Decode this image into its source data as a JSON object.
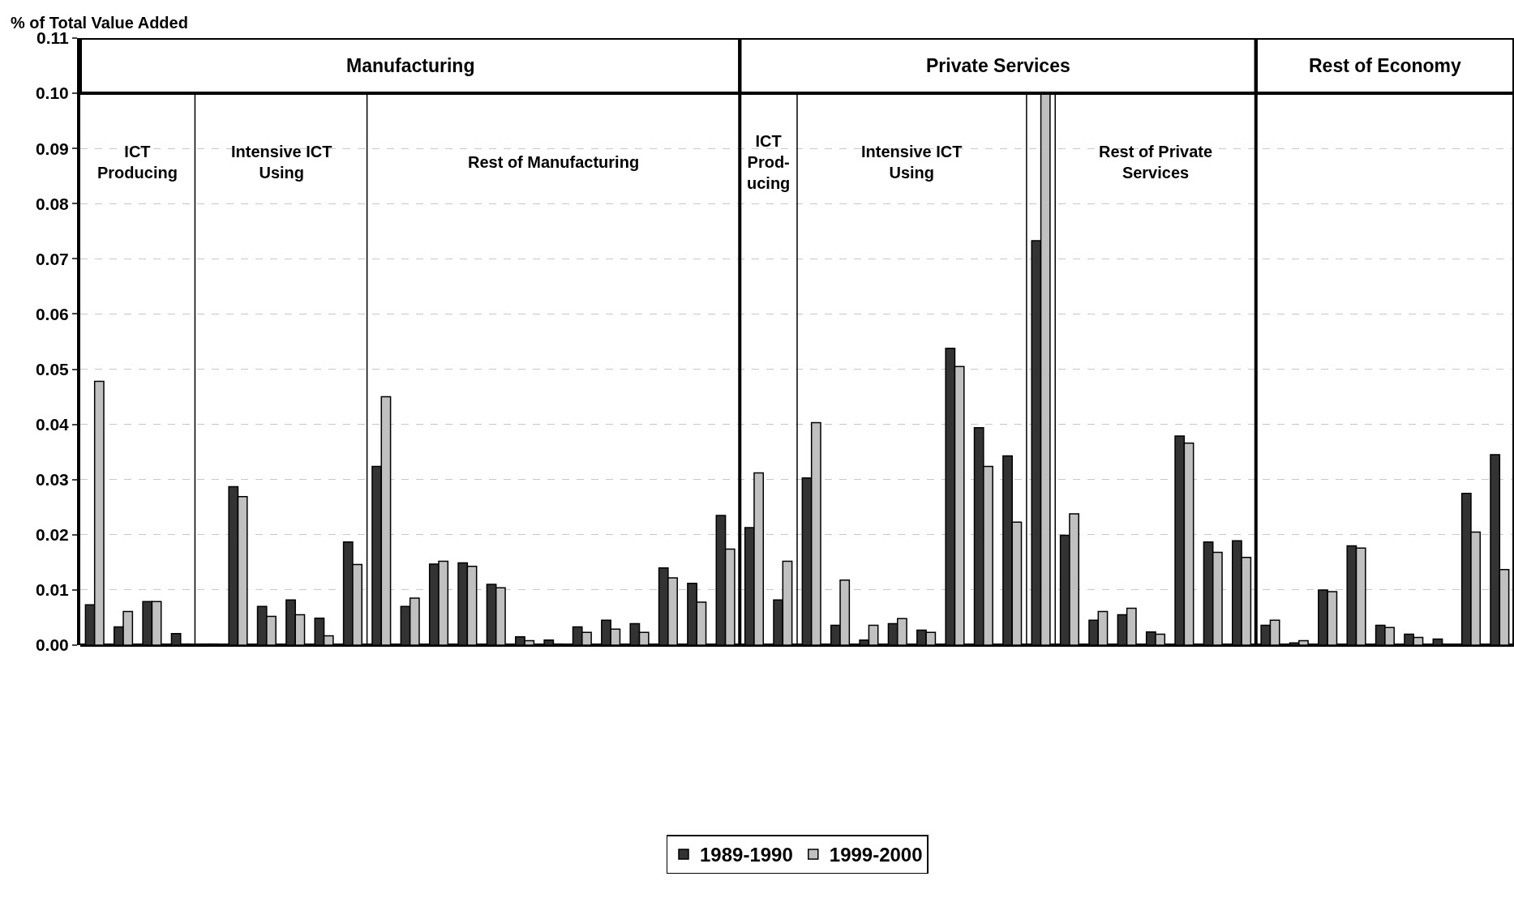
{
  "chart_data": {
    "type": "bar",
    "ylabel": "% of Total Value Added",
    "categories": [
      null,
      null,
      null,
      null,
      null,
      null,
      null,
      null,
      null,
      null,
      null,
      null,
      null,
      null,
      null,
      null,
      null,
      null,
      null,
      null,
      null,
      null,
      null,
      null,
      null,
      null,
      null,
      null,
      null,
      null,
      null,
      null,
      null,
      null,
      null,
      null,
      null,
      null,
      null,
      null,
      null,
      null,
      null,
      null,
      null,
      null,
      null,
      null,
      null,
      null
    ],
    "series": [
      {
        "name": "1989-1990",
        "color": "#333333",
        "values": [
          0.0073,
          0.0033,
          0.0079,
          0.0021,
          0.0002,
          0.0287,
          0.007,
          0.0082,
          0.0049,
          0.0187,
          0.0324,
          0.007,
          0.0147,
          0.0149,
          0.011,
          0.0015,
          0.0009,
          0.0033,
          0.0045,
          0.0039,
          0.014,
          0.0112,
          0.0235,
          0.0213,
          0.0082,
          0.0303,
          0.0036,
          0.0009,
          0.0039,
          0.0027,
          0.0538,
          0.0394,
          0.0343,
          0.0733,
          0.0199,
          0.0045,
          0.0055,
          0.0024,
          0.0379,
          0.0187,
          0.0189,
          0.0036,
          0.0004,
          0.01,
          0.018,
          0.0036,
          0.002,
          0.0011,
          0.0275,
          0.0345
        ]
      },
      {
        "name": "1999-2000",
        "color": "#c0c0c0",
        "values": [
          0.0478,
          0.0061,
          0.0079,
          0.0002,
          0.0002,
          0.0269,
          0.0052,
          0.0055,
          0.0017,
          0.0146,
          0.045,
          0.0085,
          0.0152,
          0.0143,
          0.0104,
          0.0008,
          0.0002,
          0.0023,
          0.0029,
          0.0023,
          0.0122,
          0.0078,
          0.0174,
          0.0312,
          0.0152,
          0.0403,
          0.0118,
          0.0036,
          0.0048,
          0.0023,
          0.0505,
          0.0324,
          0.0223,
          0.1,
          0.0238,
          0.0061,
          0.0067,
          0.002,
          0.0366,
          0.0168,
          0.0159,
          0.0045,
          0.0008,
          0.0097,
          0.0176,
          0.0032,
          0.0014,
          0.0001,
          0.0205,
          0.0137
        ]
      }
    ],
    "ylim": [
      0,
      0.11
    ],
    "yticks": [
      {
        "value": 0,
        "label": "0.00"
      },
      {
        "value": 0.01,
        "label": "0.01"
      },
      {
        "value": 0.02,
        "label": "0.02"
      },
      {
        "value": 0.03,
        "label": "0.03"
      },
      {
        "value": 0.04,
        "label": "0.04"
      },
      {
        "value": 0.05,
        "label": "0.05"
      },
      {
        "value": 0.06,
        "label": "0.06"
      },
      {
        "value": 0.07,
        "label": "0.07"
      },
      {
        "value": 0.08,
        "label": "0.08"
      },
      {
        "value": 0.09,
        "label": "0.09"
      },
      {
        "value": 0.1,
        "label": "0.10"
      },
      {
        "value": 0.11,
        "label": "0.11"
      }
    ],
    "annotations": [
      "Manufacturing",
      "Private Services",
      "Rest of Economy",
      "ICT\nProducing",
      "Intensive ICT\nUsing",
      "Rest of Manufacturing",
      "ICT\nProd-\nucing",
      "Intensive ICT\nUsing",
      "Rest of Private\nServices"
    ],
    "grid": "y",
    "legend": "bottom",
    "tick_labels": "y"
  }
}
